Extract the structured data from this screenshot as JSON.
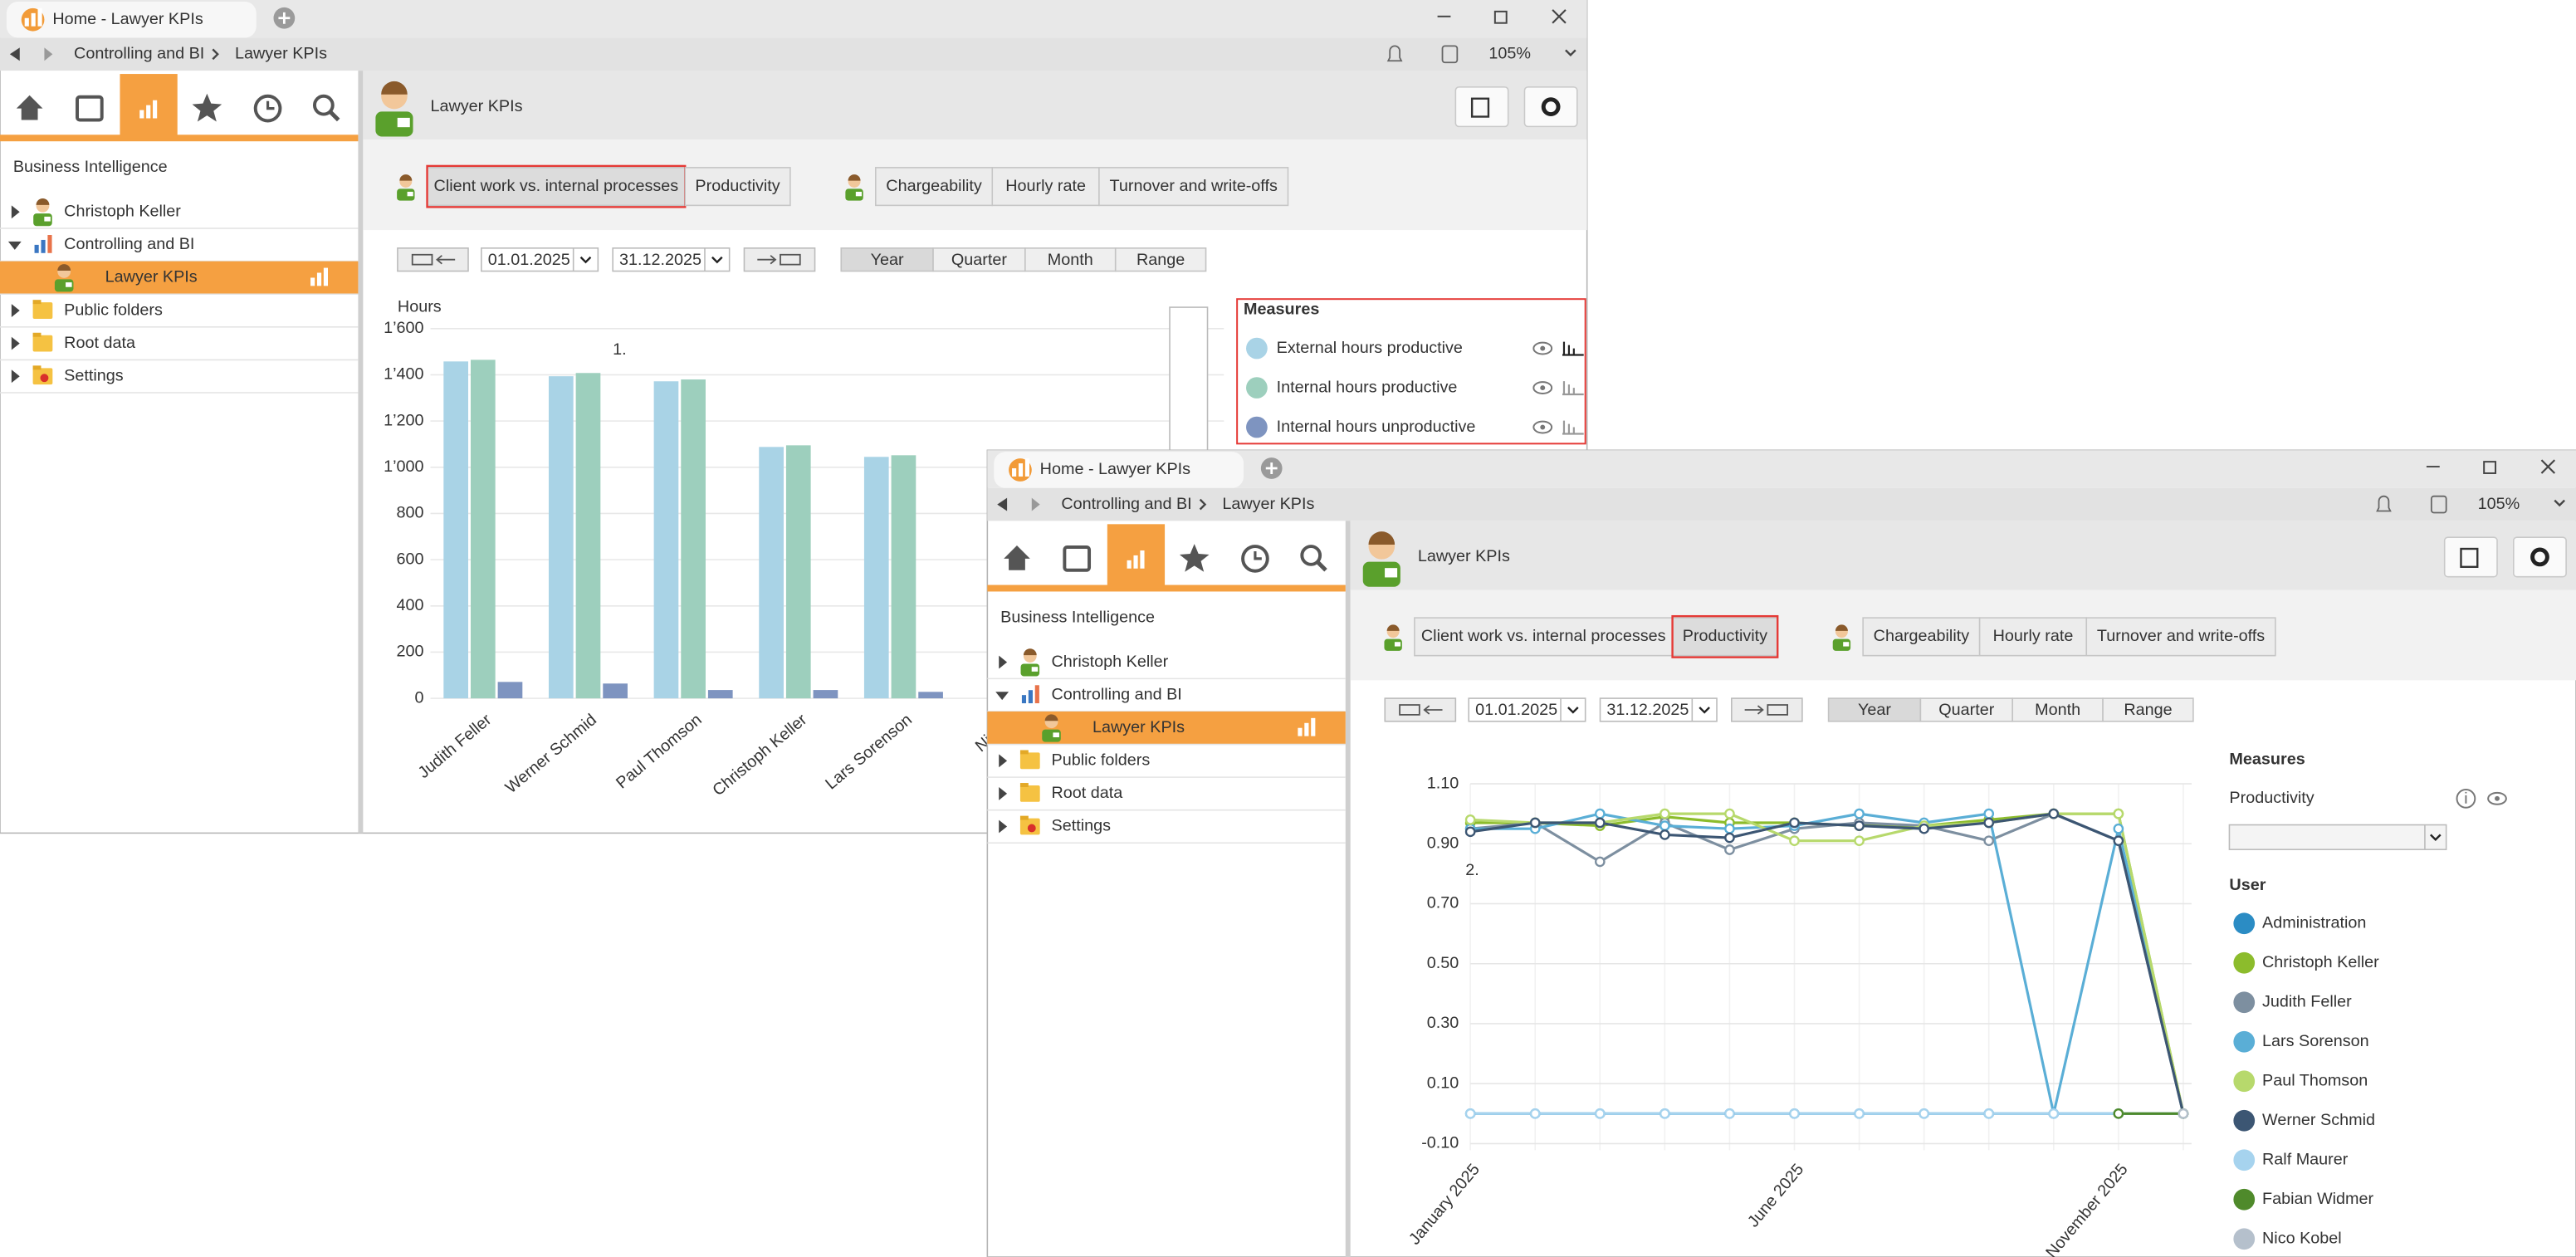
{
  "windows": [
    {
      "tab_title": "Home - Lawyer KPIs",
      "breadcrumb": [
        "Controlling and BI",
        "Lawyer KPIs"
      ],
      "zoom": "105%",
      "sidebar_title": "Business Intelligence",
      "tree": [
        "Christoph Keller",
        "Controlling and BI",
        "Lawyer KPIs",
        "Public folders",
        "Root data",
        "Settings"
      ],
      "page_title": "Lawyer KPIs",
      "report_tabs": [
        "Client work vs. internal processes",
        "Productivity"
      ],
      "selected_report_tab": 0,
      "analysis_tabs": [
        "Chargeability",
        "Hourly rate",
        "Turnover and write-offs"
      ],
      "date_from": "01.01.2025",
      "date_to": "31.12.2025",
      "periods": [
        "Year",
        "Quarter",
        "Month",
        "Range"
      ],
      "annotation": "1."
    },
    {
      "tab_title": "Home - Lawyer KPIs",
      "breadcrumb": [
        "Controlling and BI",
        "Lawyer KPIs"
      ],
      "zoom": "105%",
      "sidebar_title": "Business Intelligence",
      "tree": [
        "Christoph Keller",
        "Controlling and BI",
        "Lawyer KPIs",
        "Public folders",
        "Root data",
        "Settings"
      ],
      "page_title": "Lawyer KPIs",
      "report_tabs": [
        "Client work vs. internal processes",
        "Productivity"
      ],
      "selected_report_tab": 1,
      "analysis_tabs": [
        "Chargeability",
        "Hourly rate",
        "Turnover and write-offs"
      ],
      "date_from": "01.01.2025",
      "date_to": "31.12.2025",
      "periods": [
        "Year",
        "Quarter",
        "Month",
        "Range"
      ],
      "annotation": "2.",
      "measures_title": "Measures",
      "measure": "Productivity"
    }
  ],
  "chart_data": [
    {
      "type": "bar",
      "ylabel": "Hours",
      "legend_title": "Measures",
      "categories": [
        "Judith Feller",
        "Werner Schmid",
        "Paul Thomson",
        "Christoph Keller",
        "Lars Sorenson",
        "Nico K"
      ],
      "series": [
        {
          "name": "External hours productive",
          "color": "#a9d3e6",
          "values": [
            1458,
            1394,
            1372,
            1088,
            1045,
            null
          ]
        },
        {
          "name": "Internal hours productive",
          "color": "#9dcfbd",
          "values": [
            1465,
            1408,
            1380,
            1095,
            1052,
            null
          ]
        },
        {
          "name": "Internal hours unproductive",
          "color": "#7e94c0",
          "values": [
            71,
            64,
            36,
            36,
            28,
            null
          ]
        }
      ],
      "ylim": [
        0,
        1600
      ],
      "yticks": [
        0,
        200,
        400,
        600,
        800,
        {
          "value": 1000,
          "label": "1’000"
        },
        {
          "value": 1200,
          "label": "1’200"
        },
        {
          "value": 1400,
          "label": "1’400"
        },
        {
          "value": 1600,
          "label": "1’600"
        }
      ],
      "grid": true
    },
    {
      "type": "line",
      "legend_title": "User",
      "categories": [
        "January 2025",
        null,
        null,
        null,
        null,
        "June 2025",
        null,
        null,
        null,
        null,
        "November 2025",
        null
      ],
      "series": [
        {
          "name": "Administration",
          "color": "#2b8cc4",
          "values": [
            0,
            0,
            0,
            0,
            0,
            0,
            0,
            0,
            0,
            0,
            0,
            0
          ]
        },
        {
          "name": "Christoph Keller",
          "color": "#8cbc2c",
          "values": [
            0.97,
            0.97,
            0.96,
            0.99,
            0.97,
            0.97,
            0.96,
            0.96,
            0.98,
            1.0,
            1.0,
            0
          ]
        },
        {
          "name": "Judith Feller",
          "color": "#7d8fa0",
          "values": [
            0.95,
            0.97,
            0.84,
            0.97,
            0.88,
            0.95,
            0.97,
            0.96,
            0.91,
            1.0,
            0.91,
            0
          ]
        },
        {
          "name": "Lars Sorenson",
          "color": "#5aaed6",
          "values": [
            0.95,
            0.95,
            1.0,
            0.96,
            0.95,
            0.96,
            1.0,
            0.97,
            1.0,
            0,
            0.95,
            0
          ]
        },
        {
          "name": "Paul Thomson",
          "color": "#b7d96c",
          "values": [
            0.98,
            0.97,
            0.97,
            1.0,
            1.0,
            0.91,
            0.91,
            0.96,
            0.97,
            1.0,
            1.0,
            0
          ]
        },
        {
          "name": "Werner Schmid",
          "color": "#3c5673",
          "values": [
            0.94,
            0.97,
            0.97,
            0.93,
            0.92,
            0.97,
            0.96,
            0.95,
            0.97,
            1.0,
            0.91,
            0
          ]
        },
        {
          "name": "Ralf Maurer",
          "color": "#a6d3ee",
          "values": [
            0,
            0,
            0,
            0,
            0,
            0,
            0,
            0,
            0,
            0,
            0,
            0
          ]
        },
        {
          "name": "Fabian Widmer",
          "color": "#4f8a2b",
          "values": [
            null,
            null,
            null,
            null,
            null,
            null,
            null,
            null,
            null,
            null,
            0,
            0
          ]
        },
        {
          "name": "Nico Kobel",
          "color": "#b5c0cc",
          "values": [
            null,
            null,
            null,
            null,
            null,
            null,
            null,
            null,
            null,
            null,
            null,
            0
          ]
        }
      ],
      "ylim": [
        -0.1,
        1.1
      ],
      "yticks": [
        {
          "value": 1.1,
          "label": "1.10"
        },
        {
          "value": 0.9,
          "label": "0.90"
        },
        {
          "value": 0.7,
          "label": "0.70"
        },
        {
          "value": 0.5,
          "label": "0.50"
        },
        {
          "value": 0.3,
          "label": "0.30"
        },
        {
          "value": 0.1,
          "label": "0.10"
        },
        {
          "value": -0.1,
          "label": "-0.10"
        }
      ],
      "grid": true
    }
  ]
}
